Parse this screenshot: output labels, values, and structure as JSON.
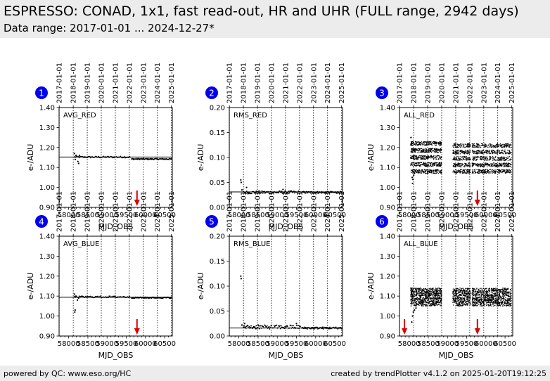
{
  "header": {
    "title": "ESPRESSO: CONAD, 1x1, fast read-out, HR and UHR (FULL range, 2942 days)",
    "subtitle": "Data range: 2017-01-01 ... 2024-12-27*"
  },
  "footer": {
    "left": "powered by QC: www.eso.org/HC",
    "right": "created by trendPlotter v4.1.2 on 2025-01-20T19:12:25"
  },
  "colors": {
    "badge": "#0000ee",
    "arrow": "#dd0000",
    "points": "#000000",
    "background": "#ececec"
  },
  "chart_data": [
    {
      "type": "scatter",
      "badge": "1",
      "label": "AVG_RED",
      "ylabel": "e-/ADU",
      "xlabel": "MJD_OBS",
      "xlim": [
        57750,
        60700
      ],
      "ylim": [
        0.9,
        1.4
      ],
      "yticks": [
        0.9,
        1.0,
        1.1,
        1.2,
        1.3,
        1.4
      ],
      "xticks": [
        58000,
        58500,
        59000,
        59500,
        60000,
        60500
      ],
      "date_ticks": [
        "2017-01-01",
        "2018-01-01",
        "2019-01-01",
        "2020-01-01",
        "2021-01-01",
        "2022-01-01",
        "2023-01-01",
        "2024-01-01",
        "2025-01-01"
      ],
      "ref_line": 1.152,
      "event_arrows": [
        59780
      ],
      "segments": [
        {
          "x0": 58150,
          "x1": 59600,
          "y": 1.152,
          "spread": 0.004,
          "n": 70
        },
        {
          "x0": 59640,
          "x1": 60670,
          "y": 1.142,
          "spread": 0.003,
          "n": 80
        }
      ],
      "points": [
        [
          58150,
          1.17
        ],
        [
          58170,
          1.14
        ],
        [
          58190,
          1.16
        ],
        [
          58240,
          1.13
        ],
        [
          58260,
          1.12
        ],
        [
          58280,
          1.16
        ]
      ]
    },
    {
      "type": "scatter",
      "badge": "2",
      "label": "RMS_RED",
      "ylabel": "e-/ADU",
      "xlabel": "MJD_OBS",
      "xlim": [
        57750,
        60700
      ],
      "ylim": [
        0.0,
        0.2
      ],
      "yticks": [
        0.0,
        0.05,
        0.1,
        0.15,
        0.2
      ],
      "xticks": [
        58000,
        58500,
        59000,
        59500,
        60000,
        60500
      ],
      "date_ticks": [
        "2017-01-01",
        "2018-01-01",
        "2019-01-01",
        "2020-01-01",
        "2021-01-01",
        "2022-01-01",
        "2023-01-01",
        "2024-01-01",
        "2025-01-01"
      ],
      "ref_line": 0.031,
      "event_arrows": [],
      "segments": [
        {
          "x0": 58120,
          "x1": 59600,
          "y": 0.03,
          "spread": 0.003,
          "n": 90
        },
        {
          "x0": 59640,
          "x1": 60670,
          "y": 0.03,
          "spread": 0.002,
          "n": 80
        }
      ],
      "points": [
        [
          58050,
          0.055
        ],
        [
          58060,
          0.05
        ],
        [
          58080,
          0.035
        ],
        [
          58200,
          0.04
        ],
        [
          58250,
          0.028
        ],
        [
          59150,
          0.036
        ]
      ]
    },
    {
      "type": "scatter",
      "badge": "3",
      "label": "ALL_RED",
      "ylabel": "e-/ADU",
      "xlabel": "MJD_OBS",
      "xlim": [
        57750,
        60700
      ],
      "ylim": [
        0.9,
        1.4
      ],
      "yticks": [
        0.9,
        1.0,
        1.1,
        1.2,
        1.3,
        1.4
      ],
      "xticks": [
        58000,
        58500,
        59000,
        59500,
        60000,
        60500
      ],
      "date_ticks": [
        "2017-01-01",
        "2018-01-01",
        "2019-01-01",
        "2020-01-01",
        "2021-01-01",
        "2022-01-01",
        "2023-01-01",
        "2024-01-01",
        "2025-01-01"
      ],
      "ref_line": null,
      "event_arrows": [
        59780
      ],
      "band_segments": [
        {
          "x0": 58040,
          "x1": 58850,
          "ylo": 1.08,
          "yhi": 1.22,
          "n": 900
        },
        {
          "x0": 59140,
          "x1": 59600,
          "ylo": 1.08,
          "yhi": 1.21,
          "n": 450
        },
        {
          "x0": 59640,
          "x1": 60650,
          "ylo": 1.08,
          "yhi": 1.21,
          "n": 900
        }
      ],
      "points": [
        [
          58050,
          1.25
        ],
        [
          58060,
          1.22
        ],
        [
          58080,
          1.05
        ],
        [
          58100,
          1.04
        ],
        [
          58120,
          1.06
        ],
        [
          58090,
          1.02
        ],
        [
          58140,
          1.07
        ]
      ]
    },
    {
      "type": "scatter",
      "badge": "4",
      "label": "AVG_BLUE",
      "ylabel": "e-/ADU",
      "xlabel": "MJD_OBS",
      "xlim": [
        57750,
        60700
      ],
      "ylim": [
        0.9,
        1.4
      ],
      "yticks": [
        0.9,
        1.0,
        1.1,
        1.2,
        1.3,
        1.4
      ],
      "xticks": [
        58000,
        58500,
        59000,
        59500,
        60000,
        60500
      ],
      "date_ticks": [
        "2017-01-01",
        "2018-01-01",
        "2019-01-01",
        "2020-01-01",
        "2021-01-01",
        "2022-01-01",
        "2023-01-01",
        "2024-01-01",
        "2025-01-01"
      ],
      "ref_line": 1.094,
      "event_arrows": [
        59780
      ],
      "segments": [
        {
          "x0": 58150,
          "x1": 59600,
          "y": 1.096,
          "spread": 0.004,
          "n": 70
        },
        {
          "x0": 59640,
          "x1": 60670,
          "y": 1.092,
          "spread": 0.003,
          "n": 80
        }
      ],
      "points": [
        [
          58150,
          1.11
        ],
        [
          58160,
          1.02
        ],
        [
          58170,
          1.03
        ],
        [
          58190,
          1.1
        ],
        [
          58230,
          1.08
        ],
        [
          58260,
          1.09
        ]
      ]
    },
    {
      "type": "scatter",
      "badge": "5",
      "label": "RMS_BLUE",
      "ylabel": "e-/ADU",
      "xlabel": "MJD_OBS",
      "xlim": [
        57750,
        60700
      ],
      "ylim": [
        0.0,
        0.2
      ],
      "yticks": [
        0.0,
        0.05,
        0.1,
        0.15,
        0.2
      ],
      "xticks": [
        58000,
        58500,
        59000,
        59500,
        60000,
        60500
      ],
      "date_ticks": [
        "2017-01-01",
        "2018-01-01",
        "2019-01-01",
        "2020-01-01",
        "2021-01-01",
        "2022-01-01",
        "2023-01-01",
        "2024-01-01",
        "2025-01-01"
      ],
      "ref_line": 0.016,
      "event_arrows": [],
      "segments": [
        {
          "x0": 58120,
          "x1": 59600,
          "y": 0.018,
          "spread": 0.004,
          "n": 90
        },
        {
          "x0": 59640,
          "x1": 60670,
          "y": 0.016,
          "spread": 0.002,
          "n": 80
        }
      ],
      "points": [
        [
          58050,
          0.12
        ],
        [
          58060,
          0.115
        ],
        [
          58080,
          0.022
        ],
        [
          58150,
          0.025
        ],
        [
          58500,
          0.022
        ],
        [
          59500,
          0.025
        ]
      ]
    },
    {
      "type": "scatter",
      "badge": "6",
      "label": "ALL_BLUE",
      "ylabel": "e-/ADU",
      "xlabel": "MJD_OBS",
      "xlim": [
        57750,
        60700
      ],
      "ylim": [
        0.9,
        1.4
      ],
      "yticks": [
        0.9,
        1.0,
        1.1,
        1.2,
        1.3,
        1.4
      ],
      "xticks": [
        58000,
        58500,
        59000,
        59500,
        60000,
        60500
      ],
      "date_ticks": [
        "2017-01-01",
        "2018-01-01",
        "2019-01-01",
        "2020-01-01",
        "2021-01-01",
        "2022-01-01",
        "2023-01-01",
        "2024-01-01",
        "2025-01-01"
      ],
      "ref_line": null,
      "event_arrows": [
        57880,
        59780
      ],
      "band_segments": [
        {
          "x0": 58040,
          "x1": 58850,
          "ylo": 1.06,
          "yhi": 1.13,
          "n": 800
        },
        {
          "x0": 59140,
          "x1": 59600,
          "ylo": 1.06,
          "yhi": 1.13,
          "n": 400
        },
        {
          "x0": 59640,
          "x1": 60650,
          "ylo": 1.06,
          "yhi": 1.13,
          "n": 900
        }
      ],
      "points": [
        [
          58050,
          1.14
        ],
        [
          58070,
          0.97
        ],
        [
          58090,
          1.0
        ],
        [
          58110,
          1.02
        ],
        [
          58140,
          1.03
        ],
        [
          58180,
          1.04
        ]
      ]
    }
  ]
}
